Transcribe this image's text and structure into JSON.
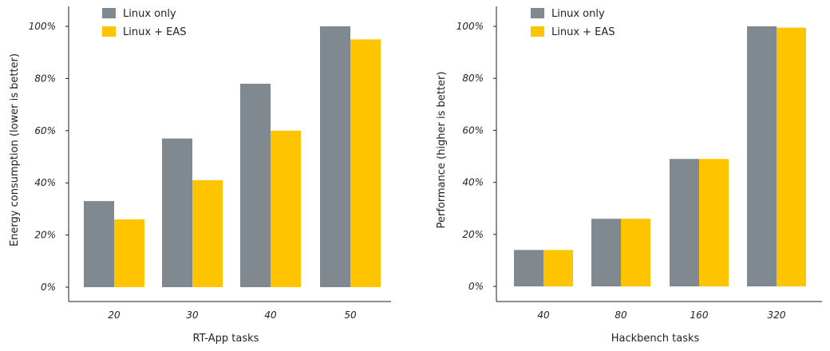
{
  "chart_data": [
    {
      "type": "bar",
      "title": "",
      "xlabel": "RT-App tasks",
      "ylabel": "Energy consumption (lower is better)",
      "categories": [
        "20",
        "30",
        "40",
        "50"
      ],
      "series": [
        {
          "name": "Linux only",
          "values": [
            33,
            57,
            78,
            100
          ],
          "color": "#808890"
        },
        {
          "name": "Linux + EAS",
          "values": [
            26,
            41,
            60,
            95
          ],
          "color": "#ffc400"
        }
      ],
      "ylim": [
        0,
        100
      ],
      "yticks": [
        "0%",
        "20%",
        "40%",
        "60%",
        "80%",
        "100%"
      ],
      "grid": false,
      "legend_position": "top-left"
    },
    {
      "type": "bar",
      "title": "",
      "xlabel": "Hackbench tasks",
      "ylabel": "Performance (higher is better)",
      "categories": [
        "40",
        "80",
        "160",
        "320"
      ],
      "series": [
        {
          "name": "Linux only",
          "values": [
            14,
            26,
            49,
            100
          ],
          "color": "#808890"
        },
        {
          "name": "Linux + EAS",
          "values": [
            14,
            26,
            49,
            99.5
          ],
          "color": "#ffc400"
        }
      ],
      "ylim": [
        0,
        100
      ],
      "yticks": [
        "0%",
        "20%",
        "40%",
        "60%",
        "80%",
        "100%"
      ],
      "grid": false,
      "legend_position": "top-left"
    }
  ]
}
